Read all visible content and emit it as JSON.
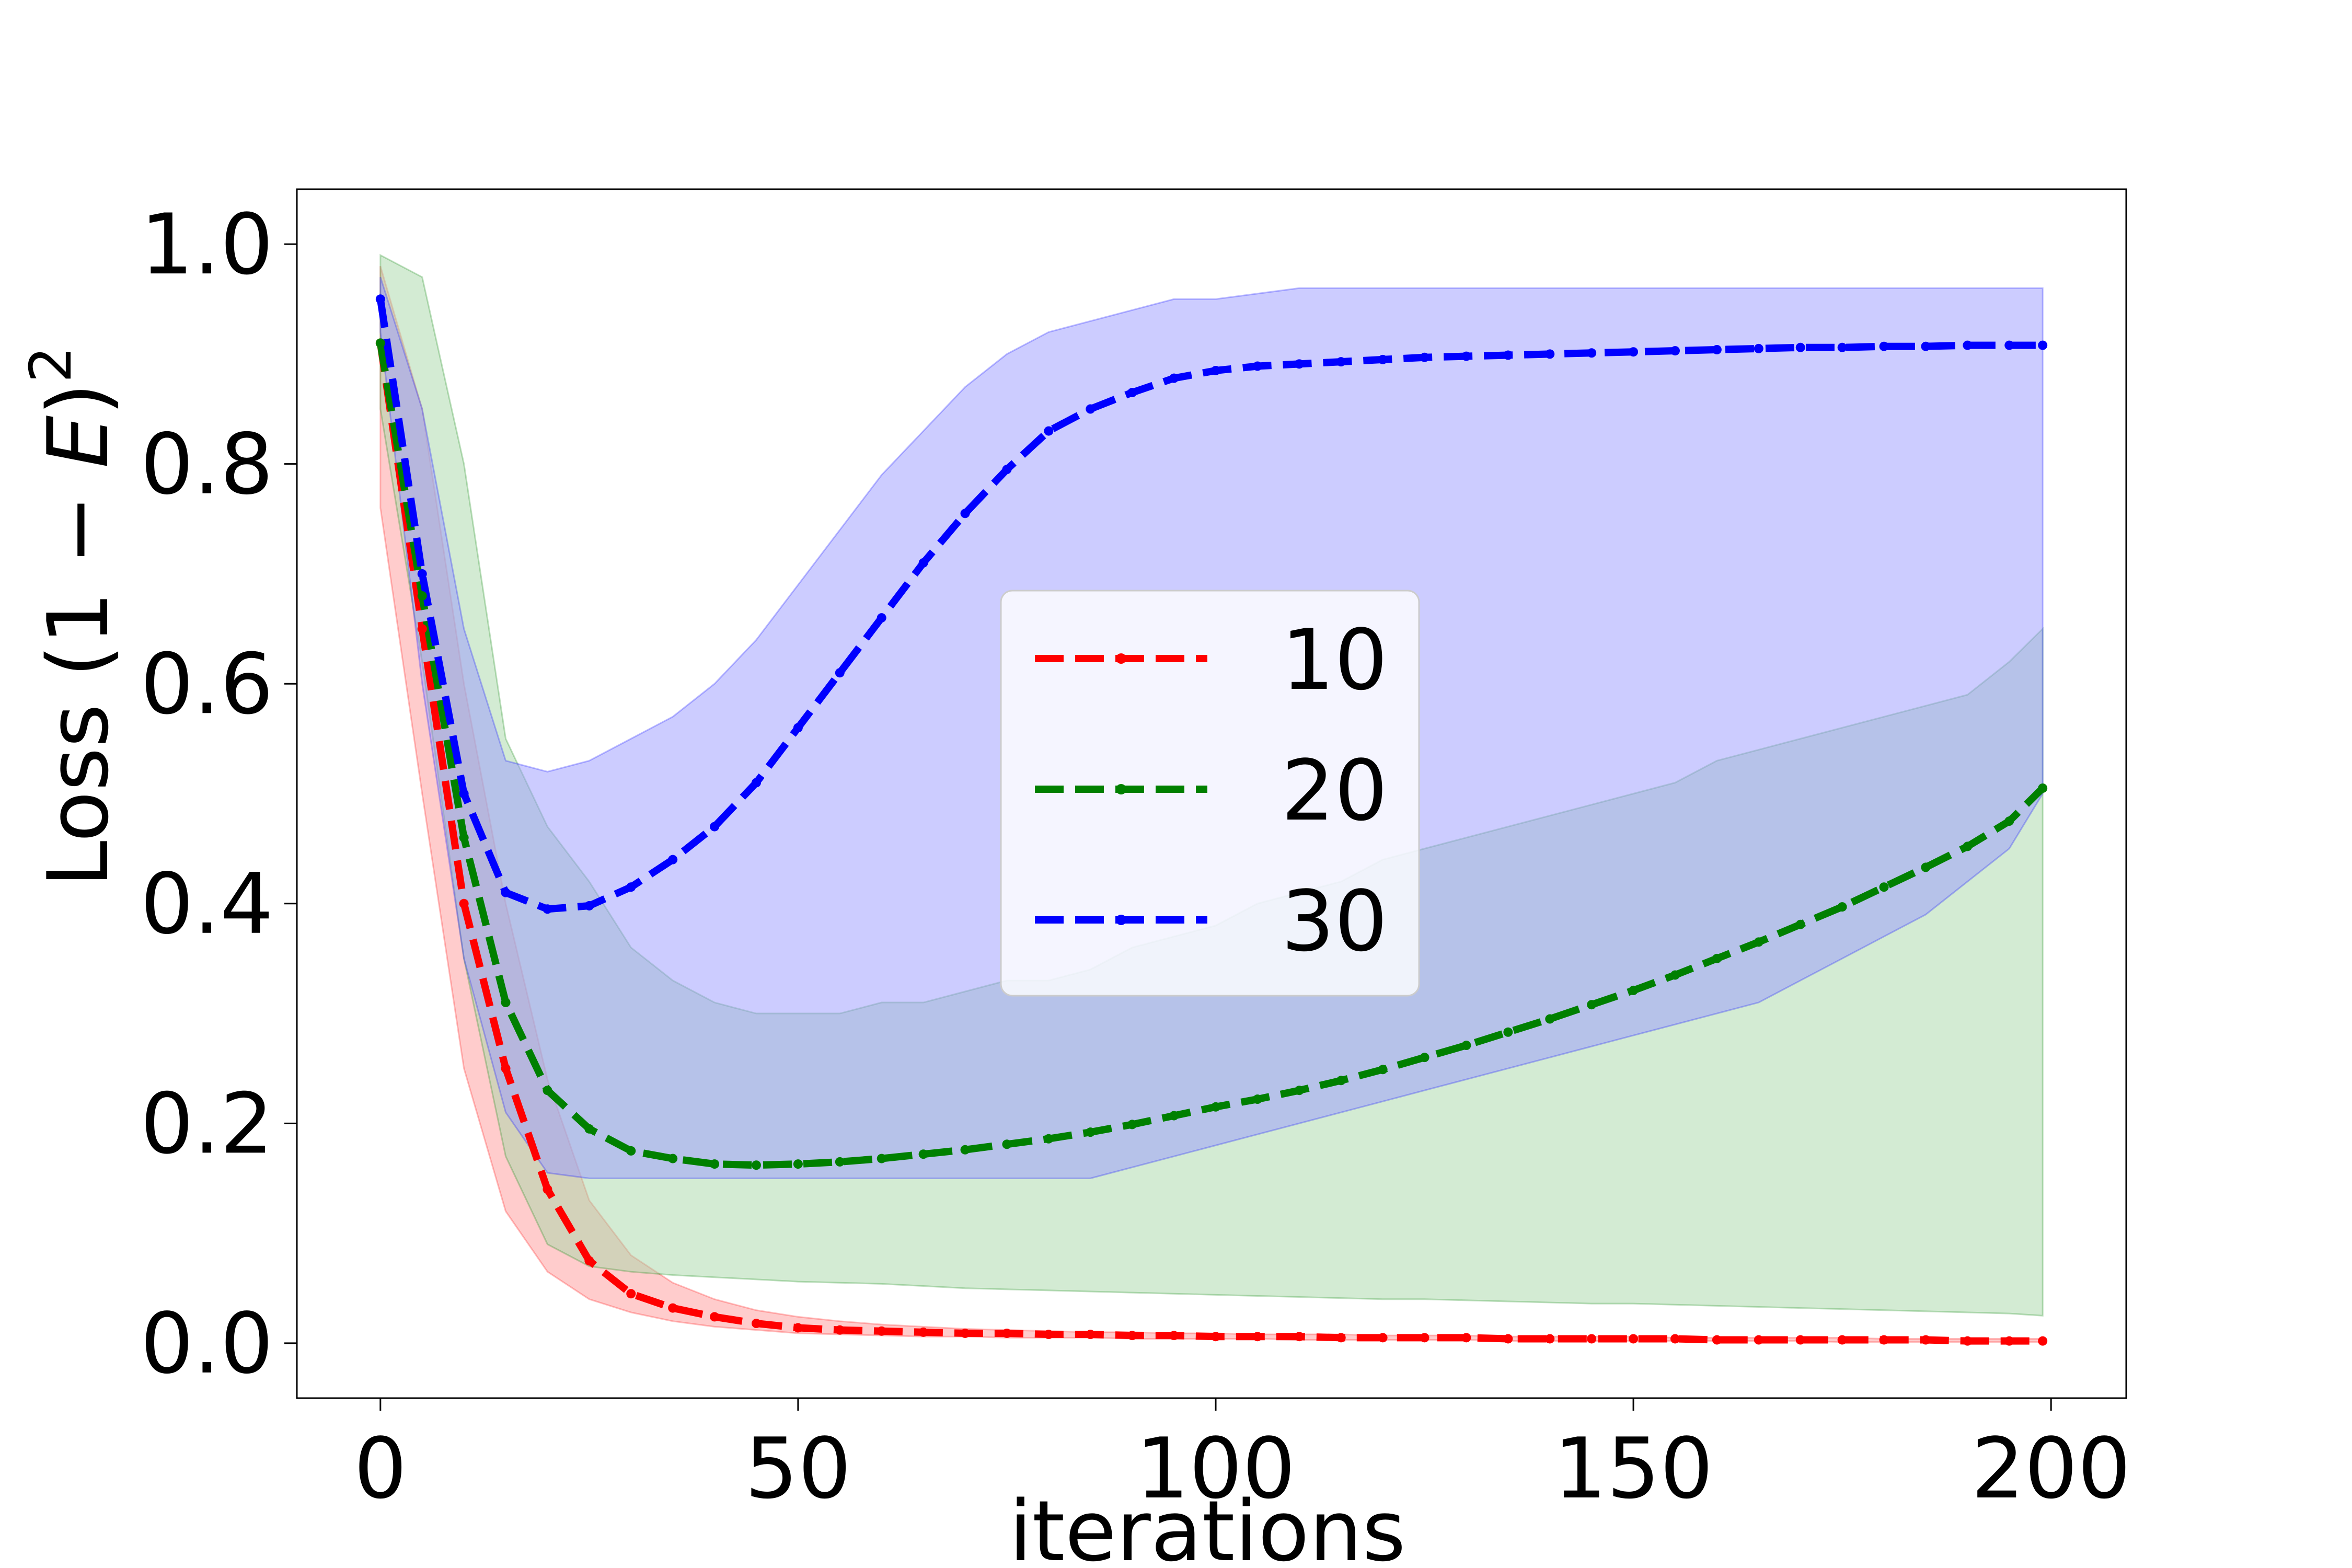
{
  "chart_data": {
    "type": "line",
    "xlabel": "iterations",
    "ylabel_prefix": "Loss (1 − ",
    "ylabel_var": "E",
    "ylabel_suffix": ")",
    "ylabel_exponent": "2",
    "xlim": [
      -10,
      209
    ],
    "ylim": [
      -0.05,
      1.05
    ],
    "xticks": [
      0,
      50,
      100,
      150,
      200
    ],
    "yticks": [
      0.0,
      0.2,
      0.4,
      0.6,
      0.8,
      1.0
    ],
    "xtick_labels": [
      "0",
      "50",
      "100",
      "150",
      "200"
    ],
    "ytick_labels": [
      "0.0",
      "0.2",
      "0.4",
      "0.6",
      "0.8",
      "1.0"
    ],
    "grid": false,
    "legend_position": "center",
    "x": [
      0,
      5,
      10,
      15,
      20,
      25,
      30,
      35,
      40,
      45,
      50,
      55,
      60,
      65,
      70,
      75,
      80,
      85,
      90,
      95,
      100,
      105,
      110,
      115,
      120,
      125,
      130,
      135,
      140,
      145,
      150,
      155,
      160,
      165,
      170,
      175,
      180,
      185,
      190,
      195,
      199
    ],
    "series": [
      {
        "name": "10",
        "color": "#ff0000",
        "band_color": "#ff9999",
        "values": [
          0.91,
          0.65,
          0.4,
          0.25,
          0.14,
          0.075,
          0.045,
          0.032,
          0.024,
          0.018,
          0.014,
          0.012,
          0.011,
          0.01,
          0.009,
          0.009,
          0.008,
          0.008,
          0.007,
          0.007,
          0.006,
          0.006,
          0.006,
          0.005,
          0.005,
          0.005,
          0.005,
          0.004,
          0.004,
          0.004,
          0.004,
          0.004,
          0.003,
          0.003,
          0.003,
          0.003,
          0.003,
          0.003,
          0.002,
          0.002,
          0.002
        ],
        "lower": [
          0.76,
          0.5,
          0.25,
          0.12,
          0.065,
          0.04,
          0.028,
          0.02,
          0.015,
          0.012,
          0.009,
          0.008,
          0.007,
          0.006,
          0.006,
          0.005,
          0.005,
          0.005,
          0.004,
          0.004,
          0.004,
          0.004,
          0.003,
          0.003,
          0.003,
          0.003,
          0.003,
          0.002,
          0.002,
          0.002,
          0.002,
          0.002,
          0.002,
          0.002,
          0.002,
          0.001,
          0.001,
          0.001,
          0.001,
          0.001,
          0.001
        ],
        "upper": [
          0.98,
          0.85,
          0.6,
          0.4,
          0.24,
          0.13,
          0.08,
          0.055,
          0.04,
          0.03,
          0.024,
          0.02,
          0.017,
          0.015,
          0.013,
          0.012,
          0.011,
          0.01,
          0.01,
          0.009,
          0.009,
          0.008,
          0.008,
          0.008,
          0.007,
          0.007,
          0.007,
          0.006,
          0.006,
          0.006,
          0.006,
          0.005,
          0.005,
          0.005,
          0.005,
          0.005,
          0.004,
          0.004,
          0.004,
          0.004,
          0.004
        ]
      },
      {
        "name": "20",
        "color": "#008000",
        "band_color": "#a8d8a8",
        "values": [
          0.91,
          0.68,
          0.46,
          0.31,
          0.23,
          0.195,
          0.175,
          0.168,
          0.163,
          0.162,
          0.163,
          0.165,
          0.168,
          0.172,
          0.176,
          0.181,
          0.186,
          0.192,
          0.199,
          0.207,
          0.215,
          0.222,
          0.23,
          0.239,
          0.249,
          0.26,
          0.271,
          0.283,
          0.295,
          0.308,
          0.321,
          0.335,
          0.35,
          0.365,
          0.381,
          0.397,
          0.415,
          0.433,
          0.452,
          0.475,
          0.505
        ],
        "lower": [
          0.85,
          0.62,
          0.35,
          0.17,
          0.09,
          0.07,
          0.065,
          0.062,
          0.06,
          0.058,
          0.056,
          0.055,
          0.054,
          0.052,
          0.05,
          0.049,
          0.048,
          0.047,
          0.046,
          0.045,
          0.044,
          0.043,
          0.042,
          0.041,
          0.04,
          0.04,
          0.039,
          0.038,
          0.037,
          0.036,
          0.036,
          0.035,
          0.034,
          0.033,
          0.032,
          0.031,
          0.03,
          0.029,
          0.028,
          0.027,
          0.025
        ],
        "upper": [
          0.99,
          0.97,
          0.8,
          0.55,
          0.47,
          0.42,
          0.36,
          0.33,
          0.31,
          0.3,
          0.3,
          0.3,
          0.31,
          0.31,
          0.32,
          0.33,
          0.33,
          0.34,
          0.36,
          0.37,
          0.38,
          0.4,
          0.41,
          0.42,
          0.44,
          0.45,
          0.46,
          0.47,
          0.48,
          0.49,
          0.5,
          0.51,
          0.53,
          0.54,
          0.55,
          0.56,
          0.57,
          0.58,
          0.59,
          0.62,
          0.65
        ]
      },
      {
        "name": "30",
        "color": "#0000ff",
        "band_color": "#9999ff",
        "values": [
          0.95,
          0.7,
          0.5,
          0.41,
          0.395,
          0.398,
          0.415,
          0.44,
          0.47,
          0.51,
          0.56,
          0.61,
          0.66,
          0.71,
          0.755,
          0.795,
          0.83,
          0.85,
          0.865,
          0.878,
          0.885,
          0.889,
          0.891,
          0.893,
          0.895,
          0.897,
          0.898,
          0.899,
          0.9,
          0.901,
          0.902,
          0.903,
          0.904,
          0.905,
          0.906,
          0.906,
          0.907,
          0.907,
          0.908,
          0.908,
          0.908
        ],
        "lower": [
          0.92,
          0.6,
          0.35,
          0.21,
          0.155,
          0.15,
          0.15,
          0.15,
          0.15,
          0.15,
          0.15,
          0.15,
          0.15,
          0.15,
          0.15,
          0.15,
          0.15,
          0.15,
          0.16,
          0.17,
          0.18,
          0.19,
          0.2,
          0.21,
          0.22,
          0.23,
          0.24,
          0.25,
          0.26,
          0.27,
          0.28,
          0.29,
          0.3,
          0.31,
          0.33,
          0.35,
          0.37,
          0.39,
          0.42,
          0.45,
          0.5
        ],
        "upper": [
          0.97,
          0.85,
          0.65,
          0.53,
          0.52,
          0.53,
          0.55,
          0.57,
          0.6,
          0.64,
          0.69,
          0.74,
          0.79,
          0.83,
          0.87,
          0.9,
          0.92,
          0.93,
          0.94,
          0.95,
          0.95,
          0.955,
          0.96,
          0.96,
          0.96,
          0.96,
          0.96,
          0.96,
          0.96,
          0.96,
          0.96,
          0.96,
          0.96,
          0.96,
          0.96,
          0.96,
          0.96,
          0.96,
          0.96,
          0.96,
          0.96
        ]
      }
    ]
  }
}
